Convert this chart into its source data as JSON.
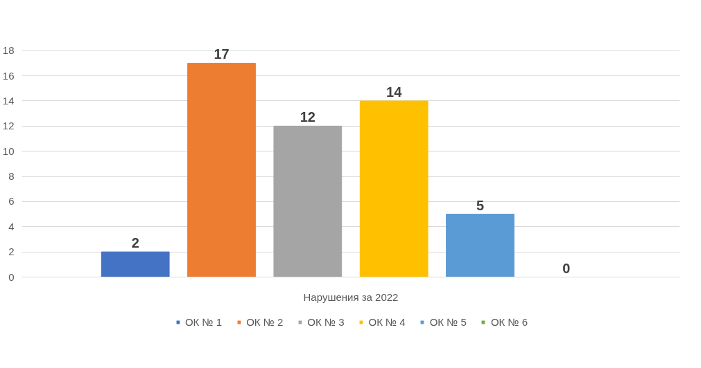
{
  "chart_data": {
    "type": "bar",
    "categories": [
      "Нарушения за 2022"
    ],
    "series": [
      {
        "name": "ОК № 1",
        "color": "#4472c4",
        "values": [
          2
        ]
      },
      {
        "name": "ОК № 2",
        "color": "#ed7d31",
        "values": [
          17
        ]
      },
      {
        "name": "ОК № 3",
        "color": "#a5a5a5",
        "values": [
          12
        ]
      },
      {
        "name": "ОК № 4",
        "color": "#ffc000",
        "values": [
          14
        ]
      },
      {
        "name": "ОК № 5",
        "color": "#5b9bd5",
        "values": [
          5
        ]
      },
      {
        "name": "ОК № 6",
        "color": "#70ad47",
        "values": [
          0
        ]
      }
    ],
    "ylim": [
      0,
      18
    ],
    "yticks": [
      0,
      2,
      4,
      6,
      8,
      10,
      12,
      14,
      16,
      18
    ],
    "grid": "y",
    "legend": "bottom",
    "data_labels": true
  }
}
